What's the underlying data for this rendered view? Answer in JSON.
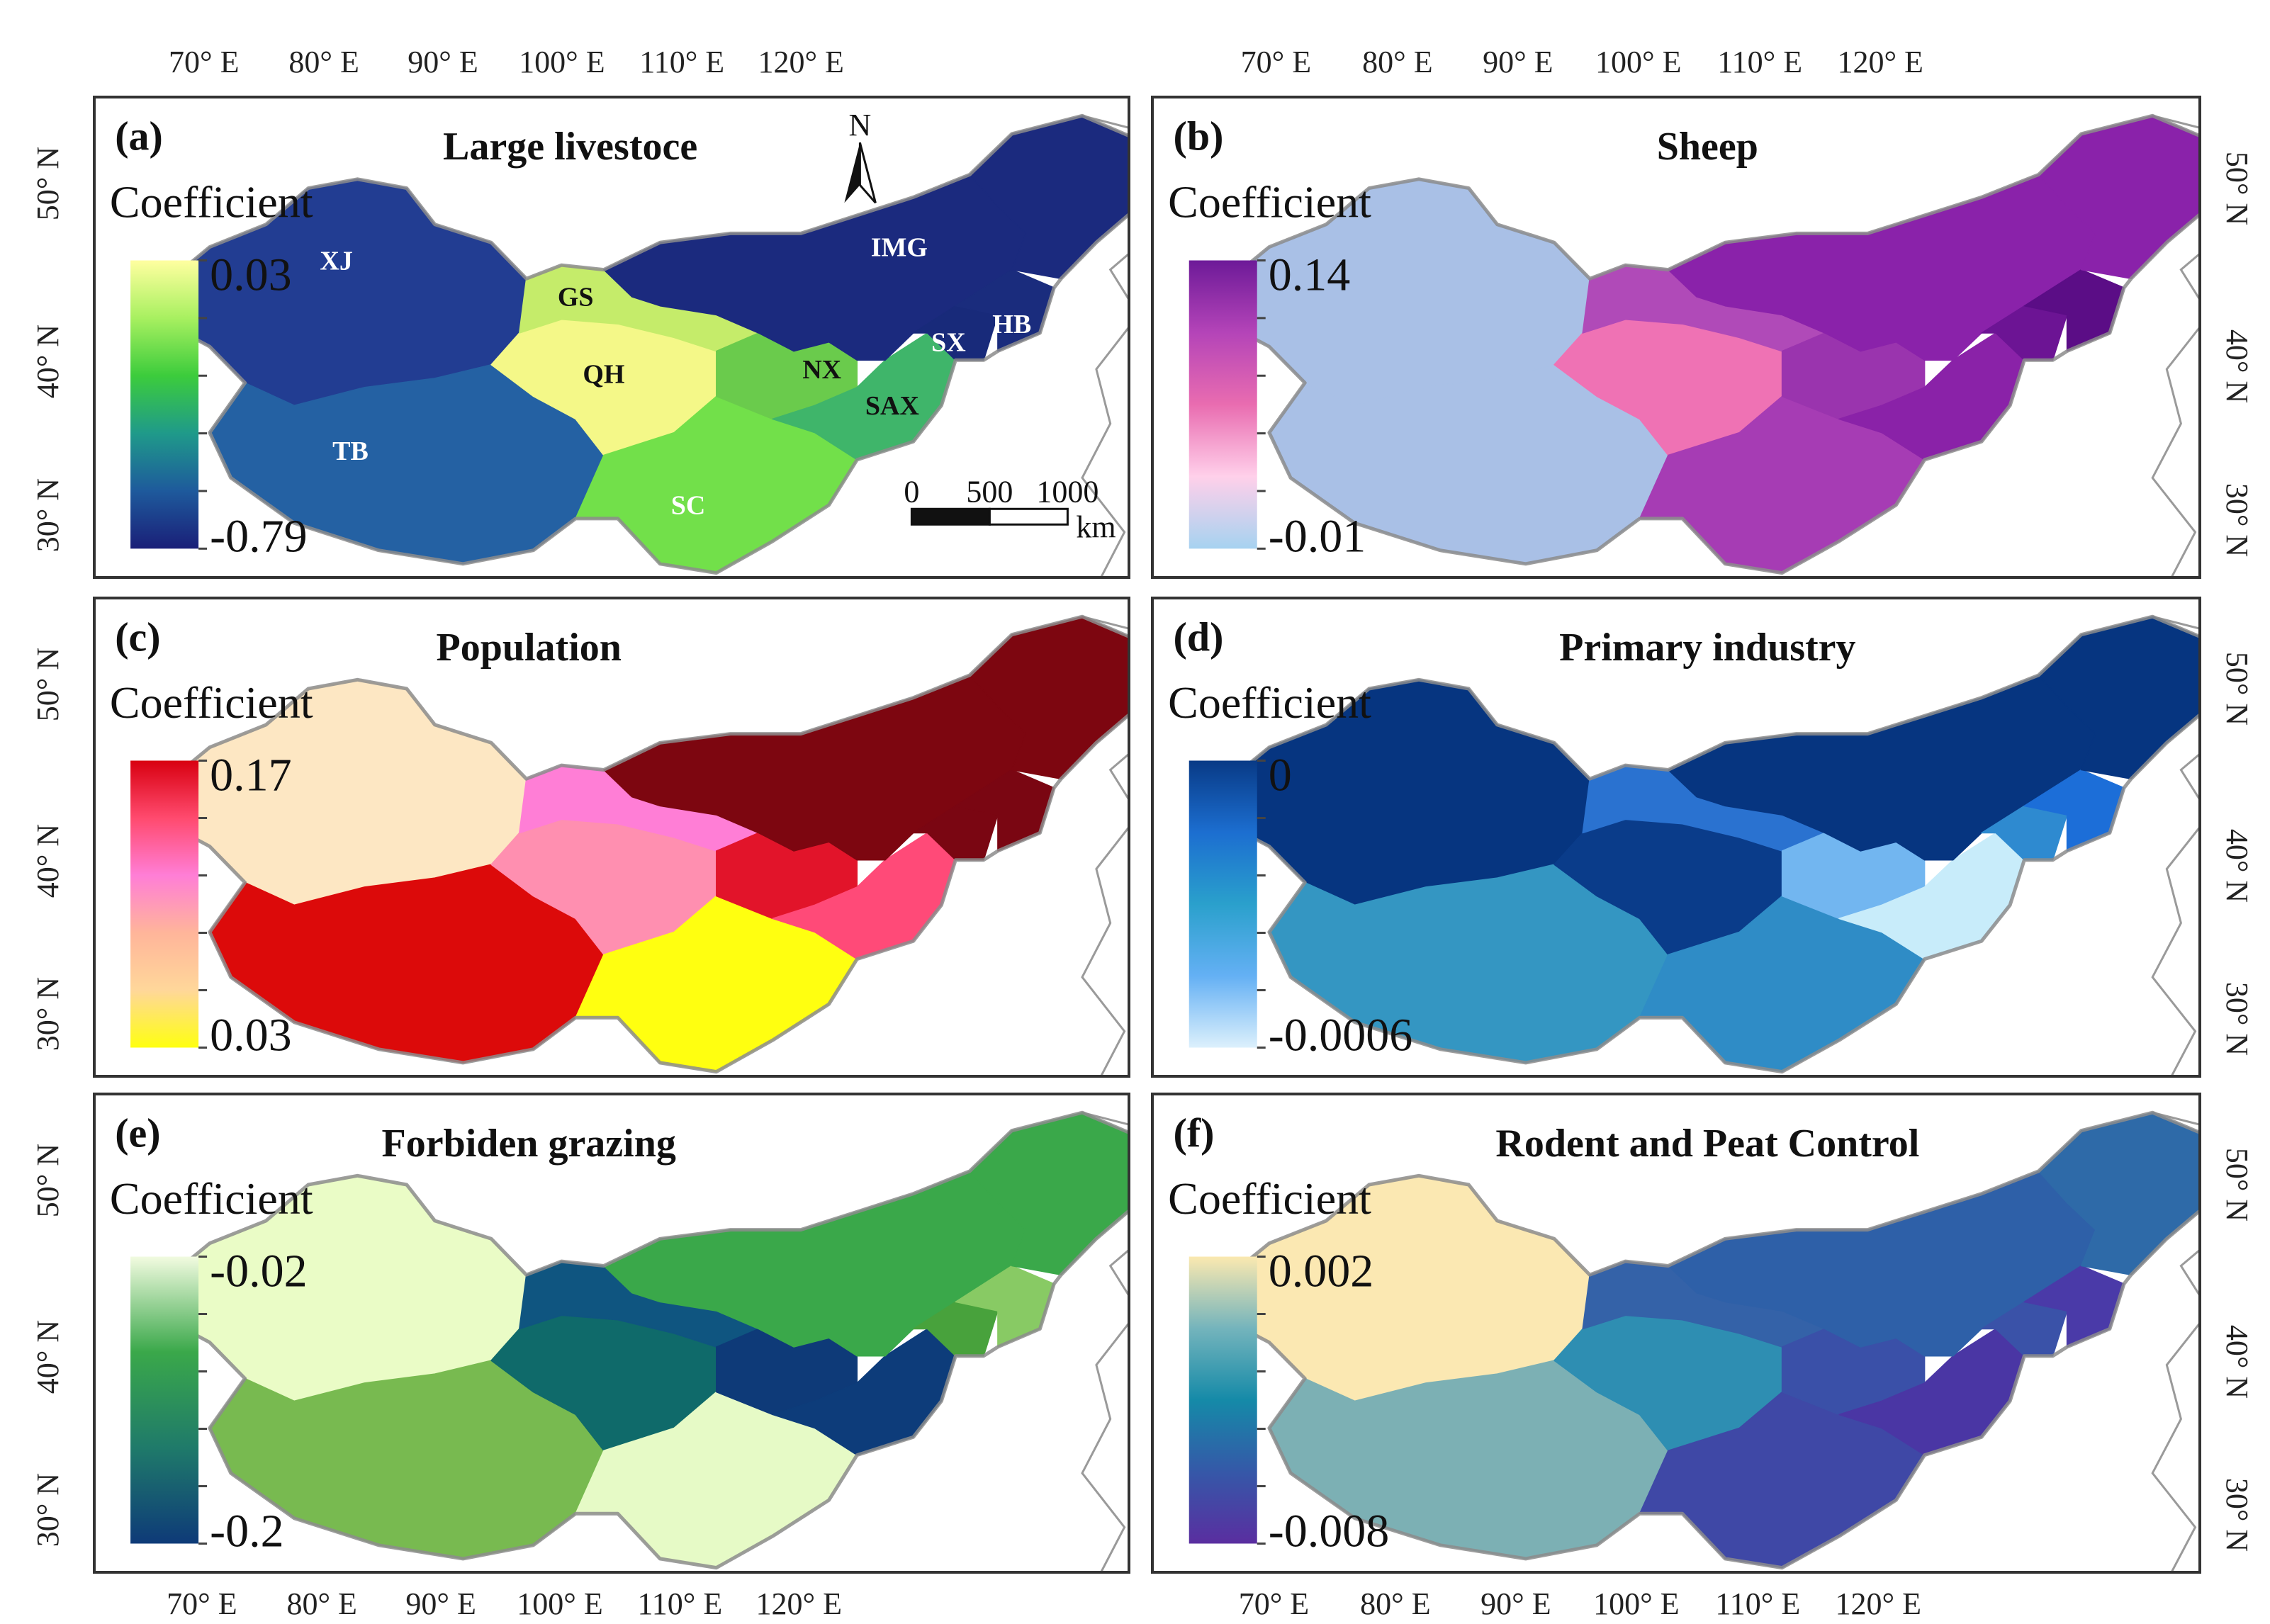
{
  "figure": {
    "lon_labels": [
      "70° E",
      "80° E",
      "90° E",
      "100° E",
      "110° E",
      "120° E"
    ],
    "lat_labels": [
      "50° N",
      "40° N",
      "30° N"
    ],
    "panels": [
      {
        "id": "a",
        "label": "(a)",
        "title": "Large livestoce",
        "legend": {
          "title": "Coefficient",
          "max": "0.03",
          "min": "-0.79",
          "colors": [
            "#ffffa0",
            "#a8f060",
            "#3ccc3c",
            "#1f9a8a",
            "#1e5a9c",
            "#1a1f78"
          ]
        },
        "fills": {
          "XJ": "#223d92",
          "TB": "#2461a3",
          "QH": "#f4f888",
          "GS": "#c5ec6a",
          "SC": "#72e04a",
          "NX": "#6acb4c",
          "SAX": "#3fb56a",
          "IMG": "#1b2a7e",
          "SX": "#182a7a",
          "HB": "#1a2c7d",
          "NE": "#1b2a7e"
        }
      },
      {
        "id": "b",
        "label": "(b)",
        "title": "Sheep",
        "legend": {
          "title": "Coefficient",
          "max": "0.14",
          "min": "-0.01",
          "colors": [
            "#6d1a98",
            "#b444b8",
            "#e96cb0",
            "#ffd0ea",
            "#a6d2f0"
          ]
        },
        "fills": {
          "XJ": "#a9c0e6",
          "TB": "#a9c0e6",
          "QH": "#ef72b4",
          "GS": "#b04ab8",
          "SC": "#a63cb4",
          "NX": "#9a34ae",
          "SAX": "#8a22a8",
          "IMG": "#8a22aa",
          "SX": "#6c1494",
          "HB": "#5b0d86",
          "NE": "#8a22aa"
        }
      },
      {
        "id": "c",
        "label": "(c)",
        "title": "Population",
        "legend": {
          "title": "Coefficient",
          "max": "0.17",
          "min": "0.03",
          "colors": [
            "#d80010",
            "#ff4a6e",
            "#ff7ed6",
            "#ffb59a",
            "#ffd79a",
            "#ffff10"
          ]
        },
        "fills": {
          "XJ": "#fde7c3",
          "TB": "#dc0a0a",
          "QH": "#ff8fb0",
          "GS": "#ff7ed6",
          "SC": "#ffff10",
          "NX": "#e2142a",
          "SAX": "#ff4a78",
          "IMG": "#7d0610",
          "SX": "#7a0612",
          "HB": "#7a0612",
          "NE": "#7d0610"
        }
      },
      {
        "id": "d",
        "label": "(d)",
        "title": "Primary industry",
        "legend": {
          "title": "Coefficient",
          "max": "0",
          "min": "-0.0006",
          "colors": [
            "#083a86",
            "#1c6ed0",
            "#2aa0cc",
            "#64b0f4",
            "#dcf0fc"
          ]
        },
        "fills": {
          "XJ": "#063580",
          "TB": "#3496c2",
          "QH": "#0a3c8a",
          "GS": "#2a72d0",
          "SC": "#2f8cc6",
          "NX": "#72b6f0",
          "SAX": "#c8ecfa",
          "IMG": "#063580",
          "SX": "#2e8ad0",
          "HB": "#1c6ed8",
          "NE": "#063580"
        }
      },
      {
        "id": "e",
        "label": "(e)",
        "title": "Forbiden grazing",
        "legend": {
          "title": "Coefficient",
          "max": "-0.02",
          "min": "-0.2",
          "colors": [
            "#f2fbe0",
            "#3aa84a",
            "#1f7a6a",
            "#0e3a78"
          ]
        },
        "fills": {
          "XJ": "#eafcc6",
          "TB": "#78ba50",
          "QH": "#0f6a6a",
          "GS": "#0f5580",
          "SC": "#e6fac6",
          "NX": "#0e3a78",
          "SAX": "#0d3c7a",
          "IMG": "#3aa84a",
          "SX": "#48a23c",
          "HB": "#88ca64",
          "NE": "#3aa84a"
        }
      },
      {
        "id": "f",
        "label": "(f)",
        "title": "Rodent and Peat Control",
        "legend": {
          "title": "Coefficient",
          "max": "0.002",
          "min": "-0.008",
          "colors": [
            "#fbe9b0",
            "#74b4bc",
            "#158aa8",
            "#3558a8",
            "#5a2ea0"
          ]
        },
        "fills": {
          "XJ": "#fbe8b2",
          "TB": "#7cb0b4",
          "QH": "#2e8eb2",
          "GS": "#3462a8",
          "SC": "#3f48a6",
          "NX": "#3a50a8",
          "SAX": "#4a36a4",
          "IMG": "#2e60a8",
          "SX": "#3a52a8",
          "HB": "#4a3aa8",
          "NE": "#2e6aa8"
        }
      }
    ],
    "province_labels": [
      {
        "key": "XJ",
        "text": "XJ"
      },
      {
        "key": "TB",
        "text": "TB"
      },
      {
        "key": "QH",
        "text": "QH"
      },
      {
        "key": "GS",
        "text": "GS"
      },
      {
        "key": "SC",
        "text": "SC"
      },
      {
        "key": "NX",
        "text": "NX"
      },
      {
        "key": "SAX",
        "text": "SAX"
      },
      {
        "key": "IMG",
        "text": "IMG"
      },
      {
        "key": "SX",
        "text": "SX"
      },
      {
        "key": "HB",
        "text": "HB"
      }
    ],
    "north_arrow": "N",
    "scale_bar": {
      "ticks": [
        "0",
        "500",
        "1000"
      ],
      "unit": "km"
    }
  }
}
